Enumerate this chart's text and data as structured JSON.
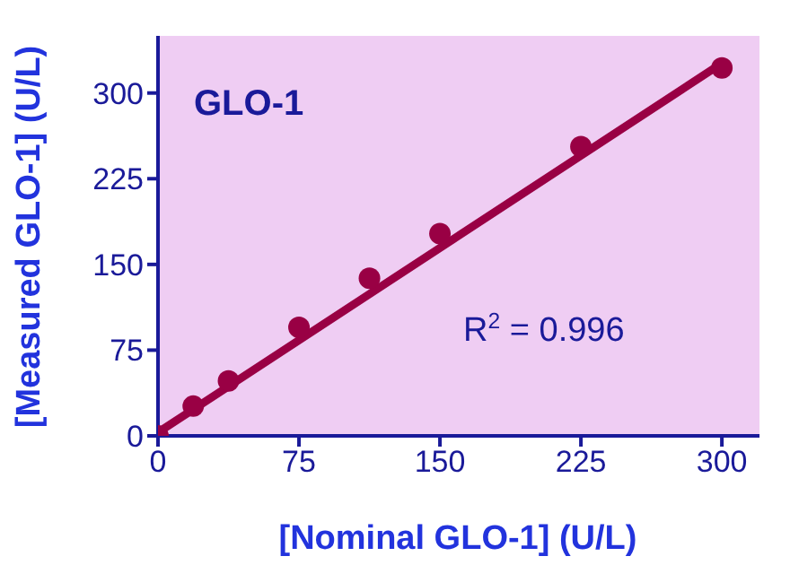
{
  "chart_data": {
    "type": "scatter",
    "xlabel": "[Nominal GLO-1] (U/L)",
    "ylabel": "[Measured GLO-1] (U/L)",
    "annotations": [
      "GLO-1",
      "R$^{2}$ = 0.996"
    ],
    "xlim": [
      0,
      320
    ],
    "ylim": [
      0,
      350
    ],
    "xticks": [
      0,
      75,
      150,
      225,
      300
    ],
    "yticks": [
      0,
      75,
      150,
      225,
      300
    ],
    "series": [
      {
        "color": "#990044",
        "marker": "circle",
        "x": [
          0,
          18.75,
          37.5,
          75,
          112.5,
          150,
          225,
          300
        ],
        "values": [
          0,
          26,
          48,
          95,
          138,
          177,
          253,
          322
        ]
      },
      {
        "type": "line",
        "color": "#990044",
        "marker": "none",
        "x": [
          0,
          300
        ],
        "values": [
          3,
          326
        ]
      }
    ]
  }
}
